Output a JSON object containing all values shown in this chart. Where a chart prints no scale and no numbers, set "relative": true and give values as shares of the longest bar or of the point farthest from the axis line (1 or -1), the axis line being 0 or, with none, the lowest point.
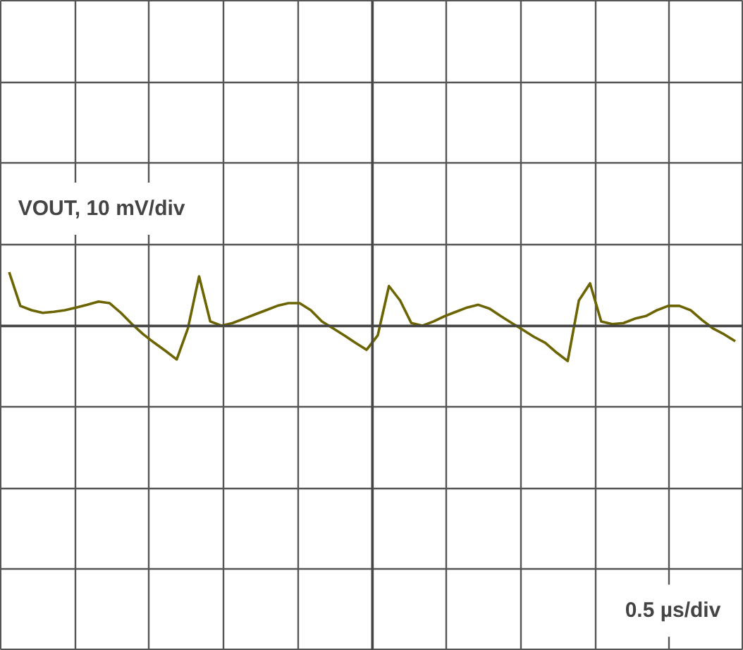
{
  "chart_data": {
    "type": "line",
    "relative": true,
    "tick_labels": false,
    "grid": true,
    "line_style": "solid",
    "marker": "none",
    "annotations": [
      "VOUT, 10 mV/div",
      "0.5 µs/div"
    ],
    "categories": [
      null,
      null,
      null,
      null,
      null,
      null,
      null,
      null,
      null,
      null,
      null,
      null,
      null,
      null,
      null,
      null,
      null,
      null,
      null,
      null,
      null,
      null,
      null,
      null,
      null,
      null,
      null,
      null,
      null,
      null,
      null,
      null,
      null,
      null,
      null,
      null,
      null,
      null,
      null,
      null,
      null,
      null,
      null,
      null,
      null,
      null,
      null,
      null,
      null,
      null,
      null,
      null,
      null,
      null,
      null,
      null,
      null,
      null,
      null,
      null,
      null,
      null,
      null,
      null,
      null,
      null
    ],
    "series": [
      {
        "color": "#6b6400",
        "values": [
          1.0,
          0.37,
          0.29,
          0.24,
          0.26,
          0.29,
          0.34,
          0.39,
          0.45,
          0.42,
          0.24,
          0.03,
          -0.16,
          -0.32,
          -0.47,
          -0.63,
          -0.05,
          0.92,
          0.08,
          0.0,
          0.05,
          0.13,
          0.21,
          0.29,
          0.37,
          0.42,
          0.42,
          0.29,
          0.08,
          -0.05,
          -0.18,
          -0.32,
          -0.45,
          -0.18,
          0.74,
          0.47,
          0.05,
          0.0,
          0.08,
          0.18,
          0.26,
          0.34,
          0.39,
          0.32,
          0.18,
          0.05,
          -0.08,
          -0.21,
          -0.32,
          -0.5,
          -0.66,
          0.47,
          0.79,
          0.08,
          0.03,
          0.05,
          0.13,
          0.18,
          0.29,
          0.37,
          0.37,
          0.29,
          0.11,
          -0.05,
          -0.16,
          -0.29
        ]
      }
    ]
  }
}
